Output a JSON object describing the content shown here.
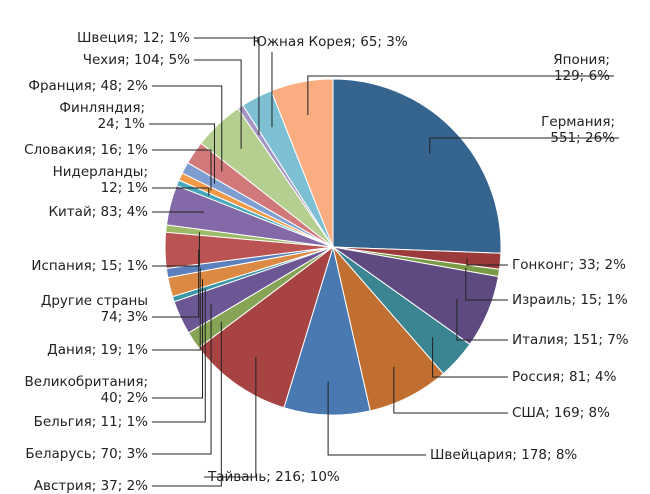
{
  "chart_data": {
    "type": "pie",
    "values": [
      551,
      33,
      15,
      151,
      81,
      169,
      178,
      216,
      37,
      70,
      11,
      40,
      19,
      74,
      15,
      83,
      12,
      16,
      24,
      48,
      104,
      12,
      65,
      129
    ],
    "labels": [
      [
        "Германия;",
        "551; 26%"
      ],
      [
        "Гонконг; 33; 2%"
      ],
      [
        "Израиль; 15; 1%"
      ],
      [
        "Италия; 151; 7%"
      ],
      [
        "Россия; 81; 4%"
      ],
      [
        "США; 169; 8%"
      ],
      [
        "Швейцария; 178; 8%"
      ],
      [
        "Тайвань; 216; 10%"
      ],
      [
        "Австрия; 37; 2%"
      ],
      [
        "Беларусь; 70; 3%"
      ],
      [
        "Бельгия; 11; 1%"
      ],
      [
        "Великобритания;",
        "40; 2%"
      ],
      [
        "Дания; 19; 1%"
      ],
      [
        "Другие страны",
        "74; 3%"
      ],
      [
        "Испания; 15; 1%"
      ],
      [
        "Китай; 83; 4%"
      ],
      [
        "Нидерланды;",
        "12; 1%"
      ],
      [
        "Словакия; 16; 1%"
      ],
      [
        "Финляндия;",
        "24; 1%"
      ],
      [
        "Франция; 48; 2%"
      ],
      [
        "Чехия; 104; 5%"
      ],
      [
        "Швеция; 12; 1%"
      ],
      [
        "Южная Корея; 65; 3%"
      ],
      [
        "Япония;",
        "129; 6%"
      ]
    ],
    "colors": [
      "#35648f",
      "#9b3a3a",
      "#7a9a45",
      "#5e4a80",
      "#3a8591",
      "#c06f31",
      "#4a78b0",
      "#a84344",
      "#86a455",
      "#6c5694",
      "#3c96aa",
      "#dc8a43",
      "#5b80bd",
      "#bb5352",
      "#9dba68",
      "#8469a8",
      "#46a7bd",
      "#f09a47",
      "#7e9dd0",
      "#d1787a",
      "#b4cf8f",
      "#a495c4",
      "#7dbfd3",
      "#f9ad80"
    ]
  }
}
